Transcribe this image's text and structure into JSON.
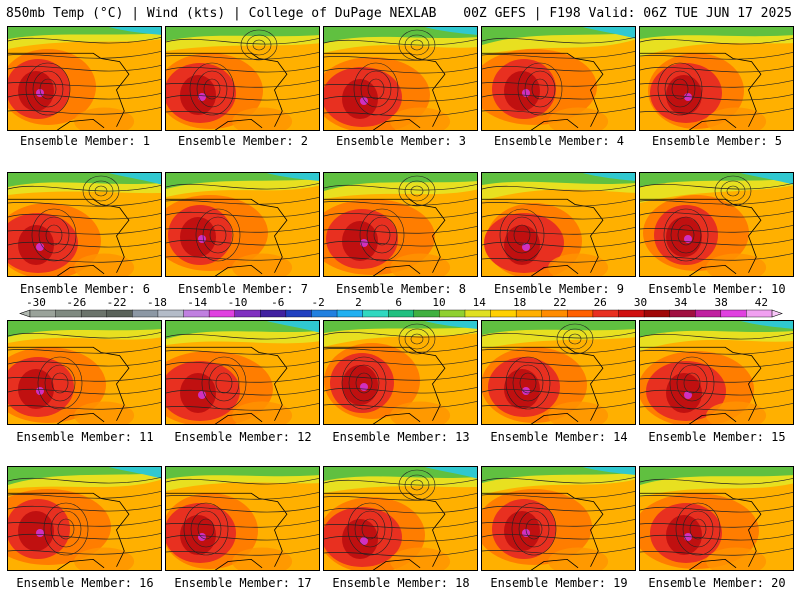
{
  "header": {
    "left": "850mb Temp (°C) | Wind (kts) | College of DuPage NEXLAB",
    "right": "00Z GEFS | F198 Valid: 06Z TUE JUN 17 2025"
  },
  "panels": [
    {
      "label": "Ensemble Member: 1"
    },
    {
      "label": "Ensemble Member: 2"
    },
    {
      "label": "Ensemble Member: 3"
    },
    {
      "label": "Ensemble Member: 4"
    },
    {
      "label": "Ensemble Member: 5"
    },
    {
      "label": "Ensemble Member: 6"
    },
    {
      "label": "Ensemble Member: 7"
    },
    {
      "label": "Ensemble Member: 8"
    },
    {
      "label": "Ensemble Member: 9"
    },
    {
      "label": "Ensemble Member: 10"
    },
    {
      "label": "Ensemble Member: 11"
    },
    {
      "label": "Ensemble Member: 12"
    },
    {
      "label": "Ensemble Member: 13"
    },
    {
      "label": "Ensemble Member: 14"
    },
    {
      "label": "Ensemble Member: 15"
    },
    {
      "label": "Ensemble Member: 16"
    },
    {
      "label": "Ensemble Member: 17"
    },
    {
      "label": "Ensemble Member: 18"
    },
    {
      "label": "Ensemble Member: 19"
    },
    {
      "label": "Ensemble Member: 20"
    }
  ],
  "colorbar": {
    "tick_labels": [
      "-30",
      "-26",
      "-22",
      "-18",
      "-14",
      "-10",
      "-6",
      "-2",
      "2",
      "6",
      "10",
      "14",
      "18",
      "22",
      "26",
      "30",
      "34",
      "38",
      "42"
    ],
    "colors": [
      "#9aa39a",
      "#7f8a80",
      "#6b746b",
      "#5a635a",
      "#8c98a4",
      "#b4bcc8",
      "#c080e0",
      "#e040e0",
      "#8030c0",
      "#4020a0",
      "#2040c0",
      "#2080e0",
      "#20b0f0",
      "#30d8c0",
      "#20c080",
      "#40b040",
      "#90d030",
      "#e0e020",
      "#ffd000",
      "#ffb000",
      "#ff8c00",
      "#ff6000",
      "#e83020",
      "#d01010",
      "#a00808",
      "#a01040",
      "#c020a0",
      "#e040e0",
      "#f0a0f0"
    ]
  }
}
